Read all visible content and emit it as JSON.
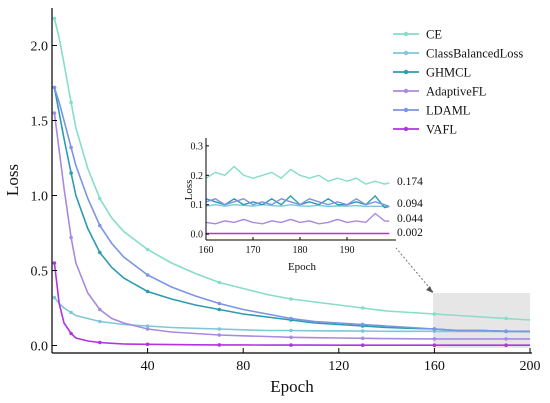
{
  "chart_data": {
    "type": "line",
    "title": "",
    "xlabel": "Epoch",
    "ylabel": "Loss",
    "xlim": [
      0,
      200
    ],
    "ylim": [
      -0.05,
      2.25
    ],
    "xticks": [
      40,
      80,
      120,
      160,
      200
    ],
    "yticks": [
      0.0,
      0.5,
      1.0,
      1.5,
      2.0
    ],
    "xtick_labels": [
      "40",
      "80",
      "120",
      "160",
      "200"
    ],
    "ytick_labels": [
      "0.0",
      "0.5",
      "1.0",
      "1.5",
      "2.0"
    ],
    "grid": false,
    "legend_position": "top-right",
    "x": [
      1,
      3,
      5,
      8,
      10,
      15,
      20,
      25,
      30,
      40,
      50,
      60,
      70,
      80,
      90,
      100,
      110,
      120,
      130,
      140,
      150,
      160,
      170,
      180,
      190,
      200
    ],
    "series": [
      {
        "name": "CE",
        "color": "#86ddc8",
        "values": [
          2.18,
          2.05,
          1.88,
          1.62,
          1.45,
          1.18,
          0.98,
          0.85,
          0.76,
          0.64,
          0.55,
          0.48,
          0.42,
          0.38,
          0.34,
          0.31,
          0.29,
          0.27,
          0.25,
          0.23,
          0.22,
          0.21,
          0.2,
          0.19,
          0.18,
          0.17
        ]
      },
      {
        "name": "ClassBalancedLoss",
        "color": "#7ec7d9",
        "values": [
          0.32,
          0.28,
          0.25,
          0.22,
          0.2,
          0.18,
          0.16,
          0.15,
          0.14,
          0.13,
          0.12,
          0.115,
          0.11,
          0.105,
          0.1,
          0.1,
          0.098,
          0.097,
          0.096,
          0.095,
          0.095,
          0.095,
          0.094,
          0.094,
          0.094,
          0.094
        ]
      },
      {
        "name": "GHMCL",
        "color": "#2b9bb0",
        "values": [
          1.72,
          1.55,
          1.38,
          1.15,
          1.0,
          0.78,
          0.62,
          0.52,
          0.45,
          0.36,
          0.31,
          0.27,
          0.24,
          0.21,
          0.19,
          0.17,
          0.15,
          0.14,
          0.13,
          0.12,
          0.115,
          0.11,
          0.1,
          0.1,
          0.095,
          0.094
        ]
      },
      {
        "name": "AdaptiveFL",
        "color": "#a98ae0",
        "values": [
          1.55,
          1.3,
          1.05,
          0.72,
          0.55,
          0.35,
          0.24,
          0.18,
          0.15,
          0.11,
          0.09,
          0.08,
          0.07,
          0.065,
          0.06,
          0.055,
          0.052,
          0.05,
          0.048,
          0.046,
          0.045,
          0.044,
          0.044,
          0.044,
          0.044,
          0.044
        ]
      },
      {
        "name": "LDAML",
        "color": "#7b95e4",
        "values": [
          1.72,
          1.62,
          1.5,
          1.32,
          1.2,
          0.98,
          0.8,
          0.68,
          0.59,
          0.47,
          0.39,
          0.33,
          0.28,
          0.24,
          0.21,
          0.18,
          0.16,
          0.15,
          0.14,
          0.13,
          0.12,
          0.11,
          0.1,
          0.1,
          0.095,
          0.094
        ]
      },
      {
        "name": "VAFL",
        "color": "#b134e0",
        "values": [
          0.55,
          0.28,
          0.15,
          0.08,
          0.05,
          0.03,
          0.02,
          0.015,
          0.01,
          0.008,
          0.006,
          0.005,
          0.004,
          0.004,
          0.003,
          0.003,
          0.003,
          0.002,
          0.002,
          0.002,
          0.002,
          0.002,
          0.002,
          0.002,
          0.002,
          0.002
        ]
      }
    ],
    "inset": {
      "xlabel": "Epoch",
      "ylabel": "Loss",
      "xlim": [
        160,
        200
      ],
      "ylim": [
        -0.02,
        0.32
      ],
      "xticks": [
        160,
        170,
        180,
        190
      ],
      "yticks": [
        0.0,
        0.1,
        0.2,
        0.3
      ],
      "xtick_labels": [
        "160",
        "170",
        "180",
        "190"
      ],
      "ytick_labels": [
        "0.0",
        "0.1",
        "0.2",
        "0.3"
      ],
      "x": [
        160,
        162,
        164,
        166,
        168,
        170,
        172,
        174,
        176,
        178,
        180,
        182,
        184,
        186,
        188,
        190,
        192,
        194,
        196,
        198,
        199
      ],
      "series": [
        {
          "name": "CE",
          "values": [
            0.19,
            0.21,
            0.2,
            0.23,
            0.2,
            0.19,
            0.2,
            0.21,
            0.19,
            0.22,
            0.2,
            0.19,
            0.2,
            0.18,
            0.19,
            0.18,
            0.19,
            0.17,
            0.18,
            0.17,
            0.174
          ]
        },
        {
          "name": "ClassBalancedLoss",
          "values": [
            0.095,
            0.1,
            0.095,
            0.1,
            0.098,
            0.095,
            0.1,
            0.097,
            0.095,
            0.1,
            0.096,
            0.095,
            0.098,
            0.094,
            0.096,
            0.095,
            0.097,
            0.094,
            0.095,
            0.094,
            0.094
          ]
        },
        {
          "name": "GHMCL",
          "values": [
            0.12,
            0.11,
            0.1,
            0.12,
            0.1,
            0.11,
            0.1,
            0.12,
            0.1,
            0.13,
            0.1,
            0.11,
            0.1,
            0.12,
            0.1,
            0.1,
            0.11,
            0.1,
            0.13,
            0.09,
            0.094
          ]
        },
        {
          "name": "AdaptiveFL",
          "values": [
            0.04,
            0.035,
            0.045,
            0.04,
            0.05,
            0.04,
            0.035,
            0.045,
            0.04,
            0.05,
            0.04,
            0.045,
            0.035,
            0.04,
            0.05,
            0.04,
            0.045,
            0.04,
            0.07,
            0.045,
            0.044
          ]
        },
        {
          "name": "LDAML",
          "values": [
            0.11,
            0.12,
            0.1,
            0.11,
            0.12,
            0.1,
            0.11,
            0.1,
            0.12,
            0.11,
            0.1,
            0.12,
            0.11,
            0.1,
            0.11,
            0.1,
            0.12,
            0.1,
            0.11,
            0.1,
            0.094
          ]
        },
        {
          "name": "VAFL",
          "values": [
            0.002,
            0.002,
            0.002,
            0.002,
            0.002,
            0.002,
            0.002,
            0.002,
            0.002,
            0.002,
            0.002,
            0.002,
            0.002,
            0.002,
            0.002,
            0.002,
            0.002,
            0.002,
            0.002,
            0.002,
            0.002
          ]
        }
      ],
      "end_labels": [
        "0.174",
        "0.094",
        "0.044",
        "0.002"
      ]
    }
  }
}
